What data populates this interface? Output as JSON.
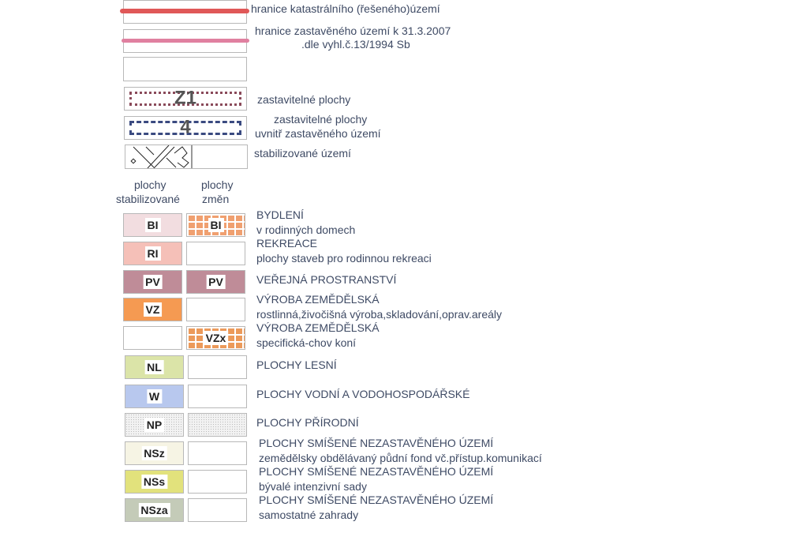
{
  "boundaries": [
    {
      "label": "hranice katastrálního (řešeného)území",
      "color": "#e05858"
    },
    {
      "label_line1": "hranice zastavěného území k 31.3.2007",
      "label_line2": ".dle vyhl.č.13/1994 Sb",
      "color": "#e080a0"
    }
  ],
  "zones": [
    {
      "code": "Z1",
      "label": "zastavitelné plochy",
      "color": "#8a4a5a"
    },
    {
      "code": "4",
      "label_line1": "zastavitelné plochy",
      "label_line2": "uvnitř zastavěného území",
      "color": "#3a4a80"
    }
  ],
  "stabilized": {
    "label": "stabilizované území"
  },
  "headers": {
    "stabilized_line1": "plochy",
    "stabilized_line2": "stabilizované",
    "changes_line1": "plochy",
    "changes_line2": "změn"
  },
  "rows": [
    {
      "left_code": "BI",
      "left_color": "#f2dde0",
      "right_code": "BI",
      "right_color": "#f0a070",
      "right_pattern": "grid",
      "title": "BYDLENÍ",
      "subtitle": "v rodinných domech"
    },
    {
      "left_code": "RI",
      "left_color": "#f5c0b8",
      "right_code": "",
      "right_color": "",
      "title": "REKREACE",
      "subtitle": "plochy staveb pro rodinnou rekreaci"
    },
    {
      "left_code": "PV",
      "left_color": "#bf8c98",
      "right_code": "PV",
      "right_color": "#bf8c98",
      "title": "VEŘEJNÁ PROSTRANSTVÍ",
      "subtitle": ""
    },
    {
      "left_code": "VZ",
      "left_color": "#f59a52",
      "right_code": "",
      "right_color": "",
      "title": "VÝROBA ZEMĚDĚLSKÁ",
      "subtitle": "rostlinná,živočišná výroba,skladování,oprav.areály"
    },
    {
      "left_code": "",
      "left_color": "",
      "right_code": "VZx",
      "right_color": "#ec9a5a",
      "right_pattern": "grid",
      "title": "VÝROBA ZEMĚDĚLSKÁ",
      "subtitle": "specifická-chov koní"
    },
    {
      "left_code": "NL",
      "left_color": "#dbe4a8",
      "right_code": "",
      "right_color": "",
      "title": "PLOCHY LESNÍ",
      "subtitle": ""
    },
    {
      "left_code": "W",
      "left_color": "#b8c8ee",
      "right_code": "",
      "right_color": "",
      "title": "PLOCHY VODNÍ A VODOHOSPODÁŘSKÉ",
      "subtitle": ""
    },
    {
      "left_code": "NP",
      "left_color": "#eeeeee",
      "left_pattern": "dots",
      "right_code": "",
      "right_color": "#eeeeee",
      "right_pattern": "dots",
      "title": "PLOCHY PŘÍRODNÍ",
      "subtitle": ""
    },
    {
      "left_code": "NSz",
      "left_color": "#f6f4e4",
      "right_code": "",
      "right_color": "",
      "title": "PLOCHY SMÍŠENÉ NEZASTAVĚNÉHO ÚZEMÍ",
      "subtitle": "zemědělsky obdělávaný půdní fond vč.přístup.komunikací"
    },
    {
      "left_code": "NSs",
      "left_color": "#e2e27c",
      "right_code": "",
      "right_color": "",
      "title": "PLOCHY SMÍŠENÉ NEZASTAVĚNÉHO ÚZEMÍ",
      "subtitle": "bývalé intenzivní sady"
    },
    {
      "left_code": "NSza",
      "left_color": "#c4cbb8",
      "right_code": "",
      "right_color": "",
      "title": "PLOCHY SMÍŠENÉ NEZASTAVĚNÉHO ÚZEMÍ",
      "subtitle": "samostatné zahrady"
    }
  ]
}
